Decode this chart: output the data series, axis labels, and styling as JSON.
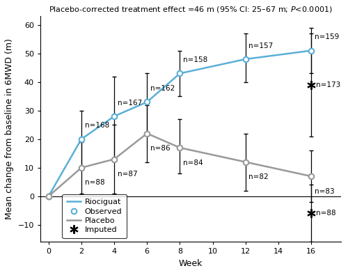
{
  "title": "Placebo-corrected treatment effect =46 m (95% CI: 25–67 m; ",
  "title_italic": "P",
  "title_suffix": "<0.0001)",
  "xlabel": "Week",
  "ylabel": "Mean change from baseline in 6MWD (m)",
  "xlim": [
    -0.5,
    17.8
  ],
  "ylim": [
    -16,
    63
  ],
  "xticks": [
    0,
    2,
    4,
    6,
    8,
    10,
    12,
    14,
    16
  ],
  "yticks": [
    -10,
    0,
    10,
    20,
    30,
    40,
    50,
    60
  ],
  "riociguat_x": [
    0,
    2,
    4,
    6,
    8,
    12,
    16
  ],
  "riociguat_y": [
    0,
    20,
    28,
    33,
    43,
    48,
    51
  ],
  "riociguat_yerr_lo": [
    0,
    10,
    15,
    11,
    8,
    8,
    8
  ],
  "riociguat_yerr_hi": [
    0,
    10,
    14,
    10,
    8,
    9,
    8
  ],
  "riociguat_color": "#5bafd6",
  "riociguat_n": [
    "",
    "n=168",
    "n=167",
    "n=162",
    "n=158",
    "n=157",
    "n=159"
  ],
  "riociguat_n_dx": [
    0,
    0.2,
    0.2,
    0.2,
    0.2,
    0.2,
    0.2
  ],
  "riociguat_n_dy": [
    0,
    3.5,
    3.5,
    3.5,
    3.5,
    3.5,
    3.5
  ],
  "placebo_x": [
    0,
    2,
    4,
    6,
    8,
    12,
    16
  ],
  "placebo_y": [
    0,
    10,
    13,
    22,
    17,
    12,
    7
  ],
  "placebo_yerr_lo": [
    0,
    9,
    12,
    10,
    9,
    10,
    9
  ],
  "placebo_yerr_hi": [
    0,
    9,
    12,
    10,
    10,
    10,
    9
  ],
  "placebo_color": "#999999",
  "placebo_n": [
    "",
    "n=88",
    "n=87",
    "n=86",
    "n=84",
    "n=82",
    "n=83"
  ],
  "placebo_n_dx": [
    0,
    0.2,
    0.2,
    0.2,
    0.2,
    0.2,
    0.2
  ],
  "placebo_n_dy": [
    0,
    -4.0,
    -4.0,
    -4.0,
    -4.0,
    -4.0,
    -4.0
  ],
  "imputed_riociguat_x": 16,
  "imputed_riociguat_y": 39,
  "imputed_riociguat_n": "n=173",
  "imputed_riociguat_yerr_lo": 18,
  "imputed_riociguat_yerr_hi": 18,
  "imputed_placebo_x": 16,
  "imputed_placebo_y": -6,
  "imputed_placebo_n": "n=88",
  "imputed_placebo_yerr_lo": 10,
  "imputed_placebo_yerr_hi": 10,
  "background_color": "#ffffff",
  "fontsize_title": 8.0,
  "fontsize_labels": 9,
  "fontsize_ticks": 8,
  "fontsize_n": 7.5
}
